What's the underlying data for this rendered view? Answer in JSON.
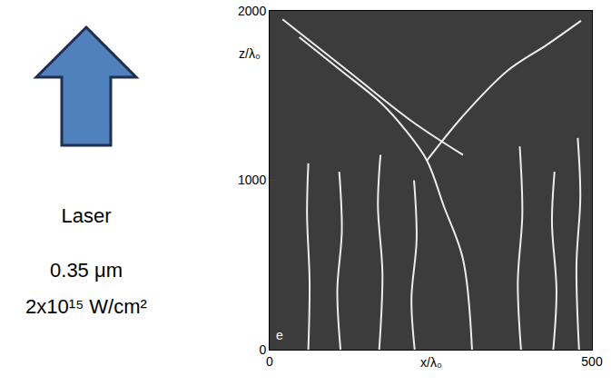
{
  "chart_data": {
    "type": "line",
    "color": "#ededed",
    "x_label": "x/λ₀",
    "y_label": "z/λ₀",
    "panel_letter": "e",
    "xlim": [
      0,
      500
    ],
    "xticks": [
      0,
      500
    ],
    "ylim": [
      0,
      2000
    ],
    "yticks": [
      0,
      1000,
      2000
    ],
    "grid": false,
    "series": [
      {
        "x": [
          60,
          62,
          58,
          60
        ],
        "values": [
          0,
          400,
          800,
          1100
        ]
      },
      {
        "x": [
          110,
          105,
          112,
          108
        ],
        "values": [
          0,
          350,
          700,
          1050
        ]
      },
      {
        "x": [
          170,
          175,
          168,
          172
        ],
        "values": [
          0,
          450,
          850,
          1150
        ]
      },
      {
        "x": [
          225,
          220,
          228,
          224
        ],
        "values": [
          0,
          300,
          650,
          1000
        ]
      },
      {
        "x": [
          390,
          385,
          392,
          388
        ],
        "values": [
          0,
          400,
          800,
          1200
        ]
      },
      {
        "x": [
          440,
          445,
          438,
          442
        ],
        "values": [
          0,
          350,
          750,
          1050
        ]
      },
      {
        "x": [
          480,
          476,
          482,
          478
        ],
        "values": [
          0,
          500,
          900,
          1250
        ]
      },
      {
        "x": [
          314,
          300,
          270,
          244,
          210,
          173,
          110,
          46
        ],
        "values": [
          0,
          534,
          850,
          1117,
          1300,
          1456,
          1650,
          1845
        ]
      },
      {
        "x": [
          244,
          300,
          370,
          430,
          483
        ],
        "values": [
          1117,
          1380,
          1650,
          1800,
          1942
        ]
      },
      {
        "x": [
          20,
          120,
          220,
          300
        ],
        "values": [
          1950,
          1650,
          1350,
          1150
        ]
      }
    ]
  },
  "side_panel": {
    "texts": [
      "Laser",
      "0.35 μm",
      "2x10¹⁵ W/cm²"
    ]
  }
}
